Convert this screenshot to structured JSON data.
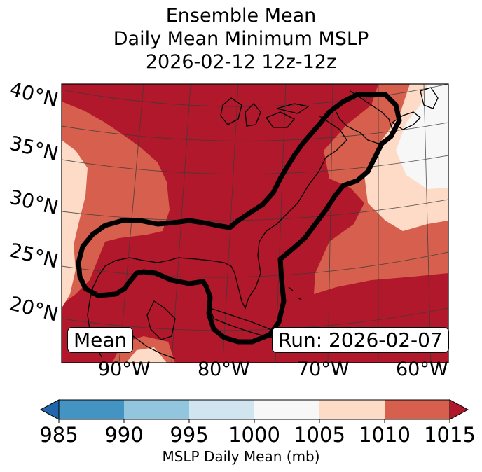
{
  "title": {
    "line1": "Ensemble Mean",
    "line2": "Daily Mean Minimum MSLP",
    "line3": "2026-02-12 12z-12z"
  },
  "map": {
    "lat_labels": [
      "40°N",
      "35°N",
      "30°N",
      "25°N",
      "20°N"
    ],
    "lon_labels": [
      "90°W",
      "80°W",
      "70°W",
      "60°W"
    ],
    "mean_label": "Mean",
    "run_label": "Run: 2026-02-07",
    "colors": {
      "c985": "#2166ac",
      "c990": "#4393c3",
      "c995": "#92c5de",
      "c1000": "#d1e5f0",
      "c1005": "#f7f7f7",
      "c1010": "#fddbc7",
      "c1015": "#d6604d",
      "c1020": "#b2182b"
    }
  },
  "colorbar": {
    "ticks": [
      "985",
      "990",
      "995",
      "1000",
      "1005",
      "1010",
      "1015"
    ],
    "label": "MSLP Daily Mean (mb)"
  }
}
